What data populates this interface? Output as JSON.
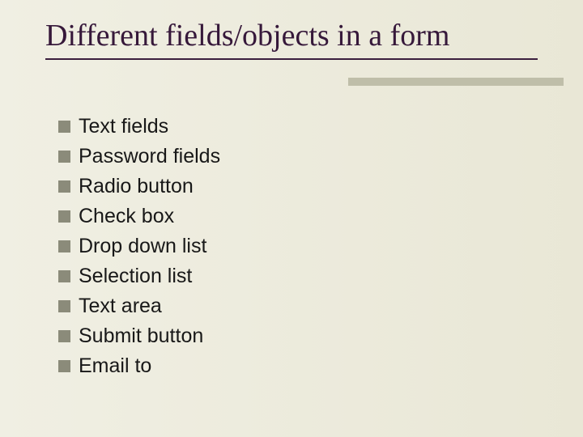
{
  "slide": {
    "title": "Different fields/objects in a form",
    "title_color": "#36183a",
    "title_font": "Times New Roman",
    "title_fontsize": 38,
    "rule_color": "#3b1f3e",
    "background_gradient_from": "#f0efe3",
    "background_gradient_to": "#e9e7d6",
    "accent_bar_color": "#bfbea9",
    "bullet_marker_color": "#8b8b7a",
    "bullet_text_color": "#181818",
    "bullet_fontsize": 25,
    "items": [
      {
        "label": "Text fields"
      },
      {
        "label": "Password fields"
      },
      {
        "label": "Radio button"
      },
      {
        "label": "Check box"
      },
      {
        "label": "Drop down list"
      },
      {
        "label": "Selection list"
      },
      {
        "label": "Text area"
      },
      {
        "label": "Submit button"
      },
      {
        "label": "Email to"
      }
    ]
  }
}
